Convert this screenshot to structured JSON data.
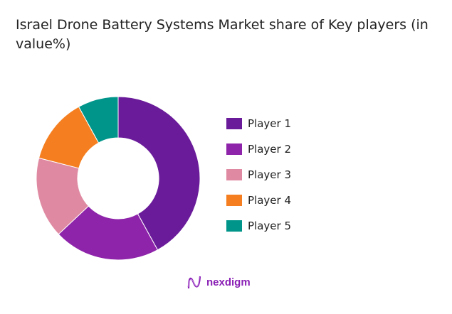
{
  "chart_data": {
    "type": "pie",
    "donut": true,
    "title": "Israel Drone Battery Systems Market share of Key players (in value%)",
    "categories": [
      "Player 1",
      "Player 2",
      "Player 3",
      "Player 4",
      "Player 5"
    ],
    "values": [
      42,
      21,
      16,
      13,
      8
    ],
    "colors": [
      "#6a1b9a",
      "#8e24aa",
      "#df8aa2",
      "#f57f20",
      "#00958a"
    ],
    "legend_position": "right"
  },
  "brand": {
    "name": "nexdigm"
  }
}
